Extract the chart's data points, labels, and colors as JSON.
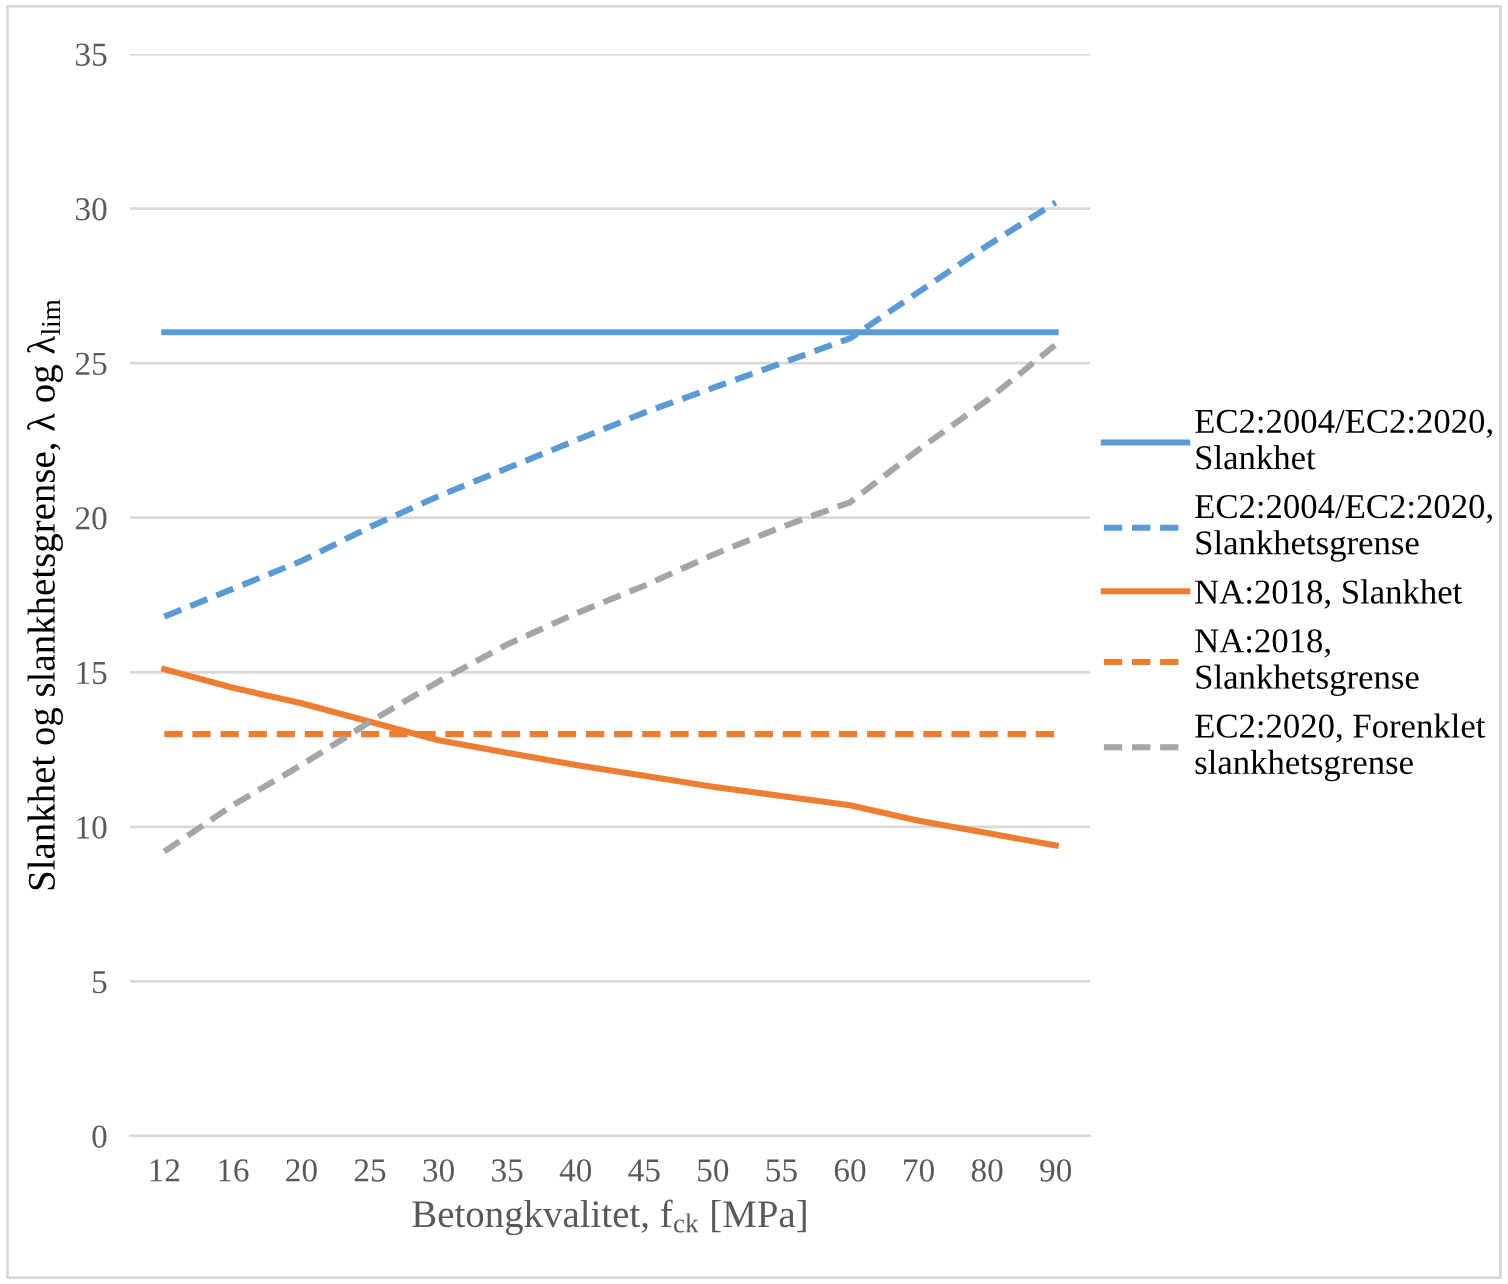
{
  "chart_data": {
    "type": "line",
    "xlabel": "Betongkvalitet, f$_{ck}$ [MPa]",
    "ylabel": "Slankhet og slankhetsgrense, λ og λ$_{lim}$",
    "categories": [
      "12",
      "16",
      "20",
      "25",
      "30",
      "35",
      "40",
      "45",
      "50",
      "55",
      "60",
      "70",
      "80",
      "90"
    ],
    "ylim": [
      0,
      35
    ],
    "yticks": [
      0,
      5,
      10,
      15,
      20,
      25,
      30,
      35
    ],
    "grid": "y",
    "legend": "right",
    "marker": "none",
    "series": [
      {
        "name": "EC2:2004/EC2:2020,\nSlankhet",
        "color": "#5b9bd5",
        "line_style": "solid",
        "values": [
          26,
          26,
          26,
          26,
          26,
          26,
          26,
          26,
          26,
          26,
          26,
          26,
          26,
          26
        ]
      },
      {
        "name": "EC2:2004/EC2:2020,\nSlankhetsgrense",
        "color": "#5b9bd5",
        "line_style": "dashed",
        "values": [
          16.8,
          17.7,
          18.6,
          19.7,
          20.7,
          21.6,
          22.5,
          23.4,
          24.2,
          25.0,
          25.8,
          27.3,
          28.8,
          30.2
        ]
      },
      {
        "name": "NA:2018, Slankhet",
        "color": "#ed7d31",
        "line_style": "solid",
        "values": [
          15.1,
          14.5,
          14.0,
          13.4,
          12.8,
          12.4,
          12.0,
          11.65,
          11.3,
          11.0,
          10.7,
          10.2,
          9.8,
          9.4
        ]
      },
      {
        "name": "NA:2018,\nSlankhetsgrense",
        "color": "#ed7d31",
        "line_style": "dashed",
        "values": [
          13,
          13,
          13,
          13,
          13,
          13,
          13,
          13,
          13,
          13,
          13,
          13,
          13,
          13
        ]
      },
      {
        "name": "EC2:2020, Forenklet\nslankhetsgrense",
        "color": "#a5a5a5",
        "line_style": "dashed",
        "values": [
          9.2,
          10.7,
          12.0,
          13.4,
          14.7,
          15.9,
          16.9,
          17.8,
          18.8,
          19.7,
          20.5,
          22.2,
          23.8,
          25.6
        ]
      }
    ]
  }
}
